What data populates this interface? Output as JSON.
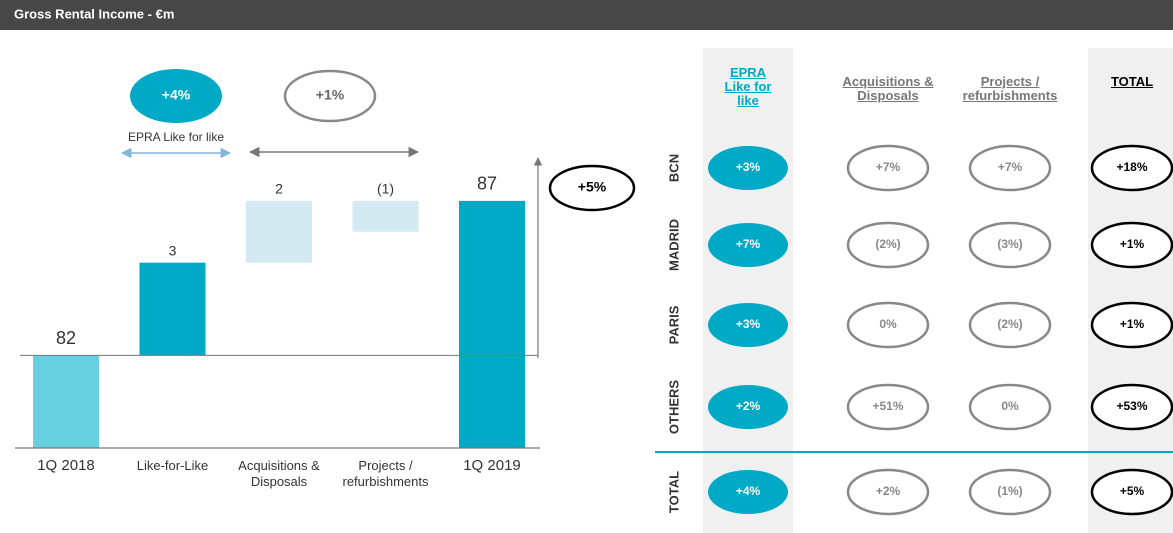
{
  "title": "Gross Rental Income - €m",
  "chart_data": {
    "type": "waterfall",
    "categories": [
      "1Q 2018",
      "Like-for-Like",
      "Acquisitions & Disposals",
      "Projects / refurbishments",
      "1Q 2019"
    ],
    "values": [
      82,
      3,
      2,
      -1,
      87
    ],
    "value_labels": [
      "82",
      "3",
      "2",
      "(1)",
      "87"
    ],
    "colors": [
      "#66cfe0",
      "#00a9c6",
      "#d3eaf3",
      "#d3eaf3",
      "#00a9c6"
    ],
    "ylim": [
      79,
      88
    ],
    "annotations": [
      "+4%",
      "EPRA Like for like",
      "+1%",
      "+5%"
    ]
  },
  "table": {
    "columns": [
      "EPRA Like for like",
      "Acquisitions & Disposals",
      "Projects / refurbishments",
      "TOTAL"
    ],
    "rows": [
      {
        "label": "BCN",
        "cells": [
          "+3%",
          "+7%",
          "+7%",
          "+18%"
        ]
      },
      {
        "label": "MADRID",
        "cells": [
          "+7%",
          "(2%)",
          "(3%)",
          "+1%"
        ]
      },
      {
        "label": "PARIS",
        "cells": [
          "+3%",
          "0%",
          "(2%)",
          "+1%"
        ]
      },
      {
        "label": "OTHERS",
        "cells": [
          "+2%",
          "+51%",
          "0%",
          "+53%"
        ]
      },
      {
        "label": "TOTAL",
        "cells": [
          "+4%",
          "+2%",
          "(1%)",
          "+5%"
        ]
      }
    ]
  }
}
